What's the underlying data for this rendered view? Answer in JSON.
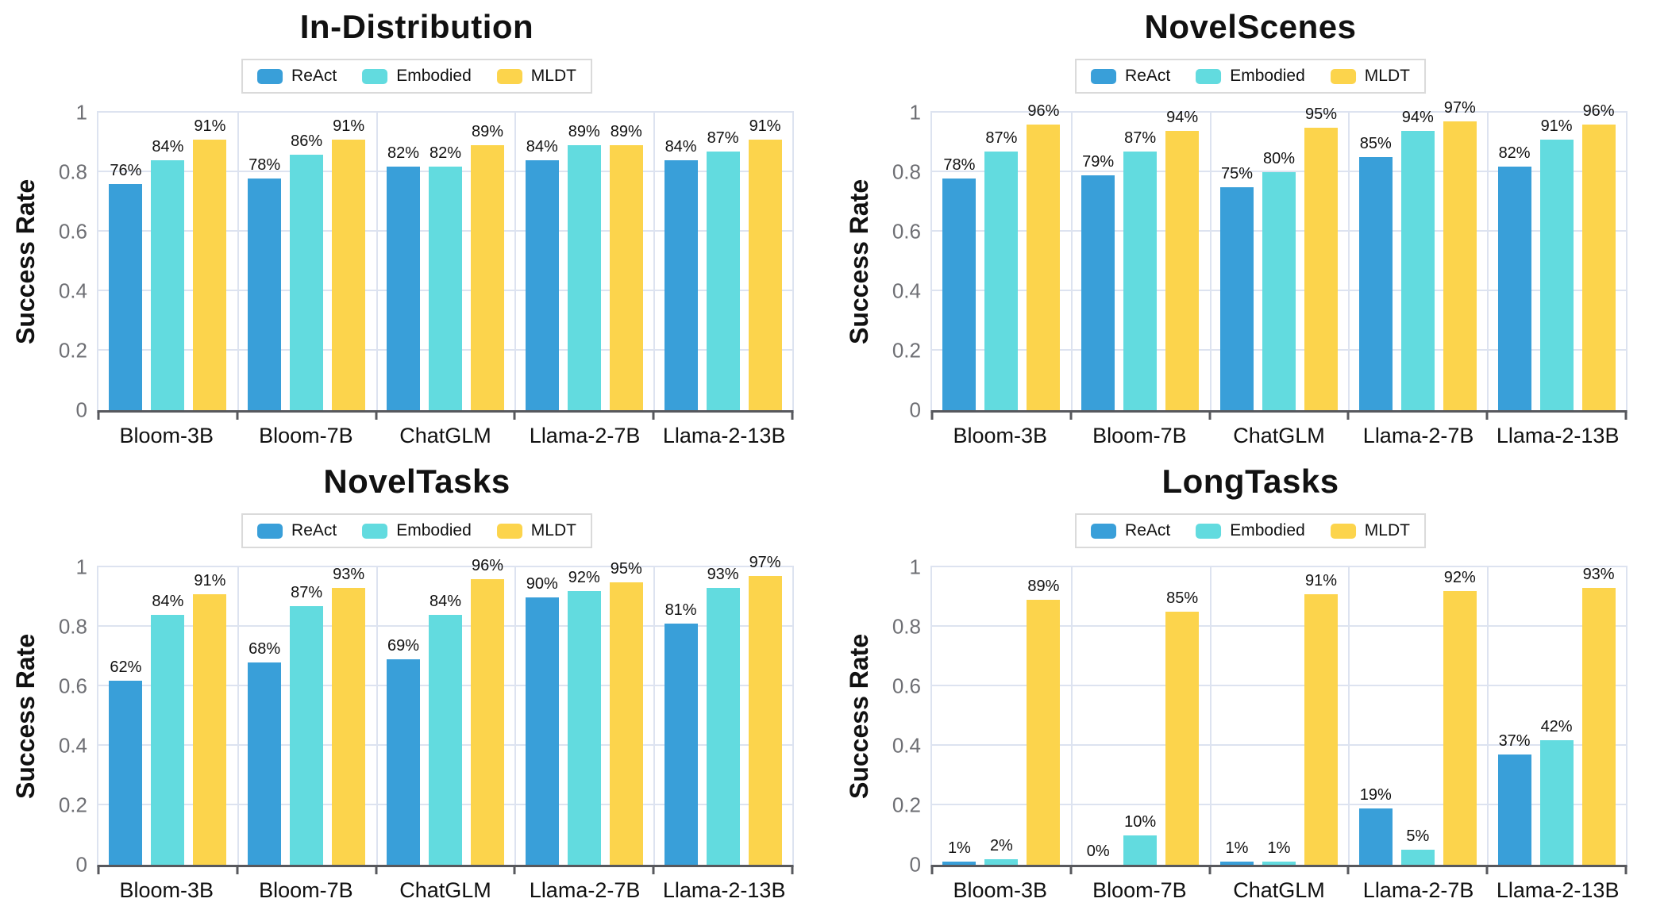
{
  "page": {
    "background": "#FFFFFF"
  },
  "colors": {
    "react": "#399FD9",
    "embodied": "#62DBDF",
    "mldt": "#FCD44C",
    "grid": "#DDE3F0",
    "axis": "#57585D",
    "tick_text": "#6E6F74",
    "legend_border": "#DADADA",
    "text": "#111111"
  },
  "legend": {
    "position": "top",
    "items": [
      {
        "label": "ReAct",
        "color": "#399FD9"
      },
      {
        "label": "Embodied",
        "color": "#62DBDF"
      },
      {
        "label": "MLDT",
        "color": "#FCD44C"
      }
    ]
  },
  "y_axis": {
    "label": "Success Rate",
    "ticks": [
      "1",
      "0.8",
      "0.6",
      "0.4",
      "0.2",
      "0"
    ],
    "range": [
      0,
      1
    ],
    "grid": true
  },
  "chart_data": [
    {
      "type": "bar",
      "title": "In-Distribution",
      "xlabel": "",
      "ylabel": "Success Rate",
      "ylim": [
        0,
        1
      ],
      "grid": true,
      "legend_position": "top",
      "value_label_suffix": "%",
      "categories": [
        "Bloom-3B",
        "Bloom-7B",
        "ChatGLM",
        "Llama-2-7B",
        "Llama-2-13B"
      ],
      "series": [
        {
          "name": "ReAct",
          "values_pct": [
            76,
            78,
            82,
            84,
            84
          ]
        },
        {
          "name": "Embodied",
          "values_pct": [
            84,
            86,
            82,
            89,
            87
          ]
        },
        {
          "name": "MLDT",
          "values_pct": [
            91,
            91,
            89,
            89,
            91
          ]
        }
      ]
    },
    {
      "type": "bar",
      "title": "NovelScenes",
      "xlabel": "",
      "ylabel": "Success Rate",
      "ylim": [
        0,
        1
      ],
      "grid": true,
      "legend_position": "top",
      "value_label_suffix": "%",
      "categories": [
        "Bloom-3B",
        "Bloom-7B",
        "ChatGLM",
        "Llama-2-7B",
        "Llama-2-13B"
      ],
      "series": [
        {
          "name": "ReAct",
          "values_pct": [
            78,
            79,
            75,
            85,
            82
          ]
        },
        {
          "name": "Embodied",
          "values_pct": [
            87,
            87,
            80,
            94,
            91
          ]
        },
        {
          "name": "MLDT",
          "values_pct": [
            96,
            94,
            95,
            97,
            96
          ]
        }
      ]
    },
    {
      "type": "bar",
      "title": "NovelTasks",
      "xlabel": "",
      "ylabel": "Success Rate",
      "ylim": [
        0,
        1
      ],
      "grid": true,
      "legend_position": "top",
      "value_label_suffix": "%",
      "categories": [
        "Bloom-3B",
        "Bloom-7B",
        "ChatGLM",
        "Llama-2-7B",
        "Llama-2-13B"
      ],
      "series": [
        {
          "name": "ReAct",
          "values_pct": [
            62,
            68,
            69,
            90,
            81
          ]
        },
        {
          "name": "Embodied",
          "values_pct": [
            84,
            87,
            84,
            92,
            93
          ]
        },
        {
          "name": "MLDT",
          "values_pct": [
            91,
            93,
            96,
            95,
            97
          ]
        }
      ]
    },
    {
      "type": "bar",
      "title": "LongTasks",
      "xlabel": "",
      "ylabel": "Success Rate",
      "ylim": [
        0,
        1
      ],
      "grid": true,
      "legend_position": "top",
      "value_label_suffix": "%",
      "categories": [
        "Bloom-3B",
        "Bloom-7B",
        "ChatGLM",
        "Llama-2-7B",
        "Llama-2-13B"
      ],
      "series": [
        {
          "name": "ReAct",
          "values_pct": [
            1,
            0,
            1,
            19,
            37
          ]
        },
        {
          "name": "Embodied",
          "values_pct": [
            2,
            10,
            1,
            5,
            42
          ]
        },
        {
          "name": "MLDT",
          "values_pct": [
            89,
            85,
            91,
            92,
            93
          ]
        }
      ]
    }
  ]
}
